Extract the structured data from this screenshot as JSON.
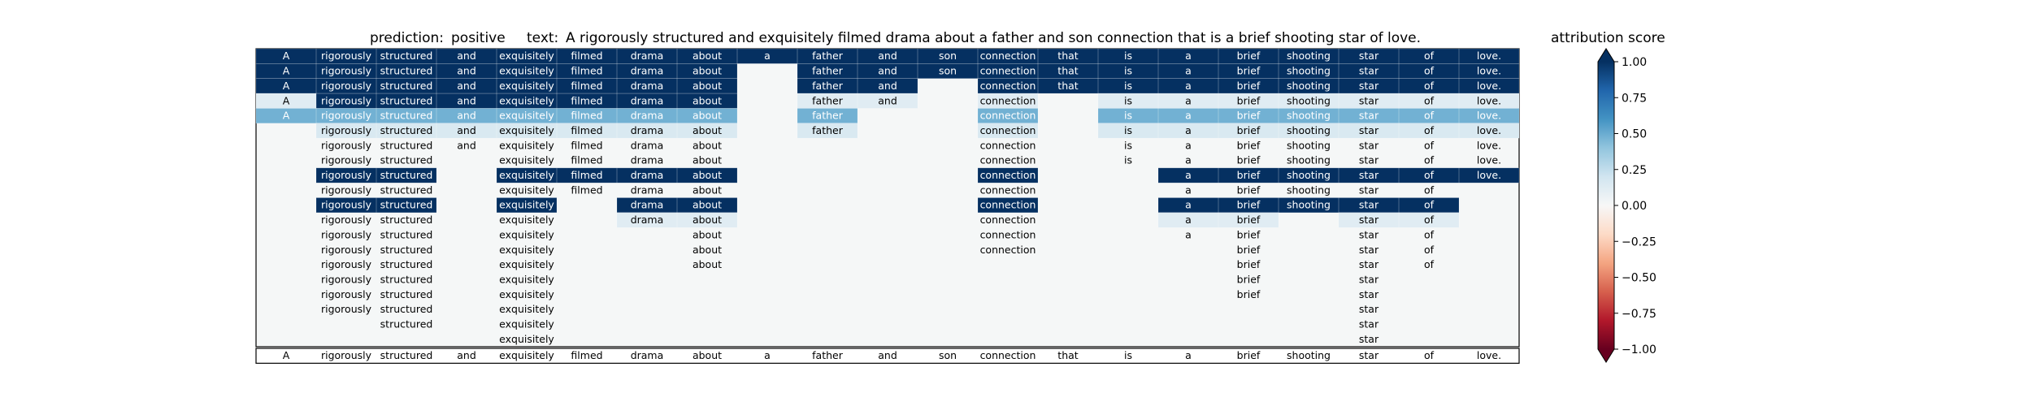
{
  "header": {
    "prediction_label": "prediction:",
    "prediction_value": "positive",
    "text_label": "text:",
    "text_value": "A rigorously structured and exquisitely filmed drama about a father and son connection that is a brief shooting star of love."
  },
  "chart_data": {
    "type": "heatmap",
    "tokens": [
      "A",
      "rigorously",
      "structured",
      "and",
      "exquisitely",
      "filmed",
      "drama",
      "about",
      "a",
      "father",
      "and",
      "son",
      "connection",
      "that",
      "is",
      "a",
      "brief",
      "shooting",
      "star",
      "of",
      "love."
    ],
    "num_rows": 20,
    "row_max": [
      21,
      21,
      21,
      20,
      20,
      20,
      19,
      18,
      20,
      15,
      18,
      14,
      14,
      13,
      12,
      11,
      10,
      9,
      9,
      9
    ],
    "cells": [
      [
        1,
        1,
        1,
        1,
        1,
        1,
        1,
        1,
        1,
        1,
        1,
        1,
        1,
        1,
        1,
        1,
        1,
        1,
        1,
        1,
        1
      ],
      [
        1,
        1,
        1,
        1,
        1,
        1,
        1,
        1,
        0,
        1,
        1,
        1,
        1,
        1,
        1,
        1,
        1,
        1,
        1,
        1,
        1
      ],
      [
        1,
        1,
        1,
        1,
        1,
        1,
        1,
        1,
        0,
        1,
        1,
        0,
        1,
        1,
        1,
        1,
        1,
        1,
        1,
        1,
        1
      ],
      [
        0.15,
        1,
        1,
        1,
        1,
        1,
        1,
        1,
        0,
        0.15,
        0.15,
        0,
        0.15,
        0,
        0.15,
        0.15,
        0.15,
        0.15,
        0.15,
        0.15,
        0.15
      ],
      [
        0.6,
        0.6,
        0.6,
        0.6,
        0.6,
        0.6,
        0.6,
        0.6,
        0,
        0.6,
        0,
        0,
        0.6,
        0,
        0.6,
        0.6,
        0.6,
        0.6,
        0.6,
        0.6,
        0.6
      ],
      [
        0,
        0.2,
        0.2,
        0.2,
        0.2,
        0.2,
        0.2,
        0.2,
        0,
        0.2,
        0,
        0,
        0.2,
        0,
        0.2,
        0.2,
        0.2,
        0.2,
        0.2,
        0.2,
        0.2
      ],
      [
        0,
        0,
        0,
        0,
        0,
        0,
        0,
        0,
        0,
        0,
        0,
        0,
        0,
        0,
        0,
        0,
        0,
        0,
        0,
        0,
        0
      ],
      [
        0,
        0,
        0,
        0,
        0,
        0,
        0,
        0,
        0,
        0,
        0,
        0,
        0,
        0,
        0,
        0,
        0,
        0,
        0,
        0,
        0
      ],
      [
        0,
        1,
        1,
        0,
        1,
        1,
        1,
        1,
        0,
        0,
        0,
        0,
        1,
        0,
        0,
        1,
        1,
        1,
        1,
        1,
        1
      ],
      [
        0,
        0,
        0,
        0,
        0,
        0,
        0,
        0,
        0,
        0,
        0,
        0,
        0,
        0,
        0,
        0,
        0,
        0,
        0,
        0,
        0
      ],
      [
        0,
        1,
        1,
        0,
        1,
        0,
        1,
        1,
        0,
        0,
        0,
        0,
        1,
        0,
        0,
        1,
        1,
        1,
        1,
        1,
        0
      ],
      [
        0,
        0,
        0,
        0,
        0,
        0,
        0.15,
        0.15,
        0,
        0,
        0,
        0,
        0,
        0,
        0,
        0.15,
        0.15,
        0,
        0.15,
        0.15,
        0
      ],
      [
        0,
        0,
        0,
        0,
        0,
        0,
        0,
        0,
        0,
        0,
        0,
        0,
        0,
        0,
        0,
        0,
        0,
        0,
        0,
        0,
        0
      ],
      [
        0,
        0,
        0,
        0,
        0,
        0,
        0,
        0,
        0,
        0,
        0,
        0,
        0,
        0,
        0,
        0,
        0,
        0,
        0,
        0,
        0
      ],
      [
        0,
        0,
        0,
        0,
        0,
        0,
        0,
        0,
        0,
        0,
        0,
        0,
        0,
        0,
        0,
        0,
        0,
        0,
        0,
        0,
        0
      ],
      [
        0,
        0,
        0,
        0,
        0,
        0,
        0,
        0,
        0,
        0,
        0,
        0,
        0,
        0,
        0,
        0,
        0,
        0,
        0,
        0,
        0
      ],
      [
        0,
        0,
        0,
        0,
        0,
        0,
        0,
        0,
        0,
        0,
        0,
        0,
        0,
        0,
        0,
        0,
        0,
        0,
        0,
        0,
        0
      ],
      [
        0,
        0,
        0,
        0,
        0,
        0,
        0,
        0,
        0,
        0,
        0,
        0,
        0,
        0,
        0,
        0,
        0,
        0,
        0,
        0,
        0
      ],
      [
        0,
        0,
        0,
        0,
        0,
        0,
        0,
        0,
        0,
        0,
        0,
        0,
        0,
        0,
        0,
        0,
        0,
        0,
        0,
        0,
        0
      ],
      [
        0,
        0,
        0,
        0,
        0,
        0,
        0,
        0,
        0,
        0,
        0,
        0,
        0,
        0,
        0,
        0,
        0,
        0,
        0,
        0,
        0
      ]
    ],
    "colorbar": {
      "title": "attribution score",
      "range": [
        -1,
        1
      ],
      "ticks": [
        1.0,
        0.75,
        0.5,
        0.25,
        0.0,
        -0.25,
        -0.5,
        -0.75,
        -1.0
      ],
      "tick_labels": [
        "1.00",
        "0.75",
        "0.50",
        "0.25",
        "0.00",
        "−0.25",
        "−0.50",
        "−0.75",
        "−1.00"
      ],
      "colors": {
        "max": "#053061",
        "high": "#2166ac",
        "mid_high": "#4393c3",
        "low_pos": "#92c5de",
        "faint_pos": "#d1e5f0",
        "zero": "#f7f7f7",
        "faint_neg": "#fddbc7",
        "low_neg": "#f4a582",
        "mid_neg": "#d6604d",
        "high_neg": "#b2182b",
        "min": "#67001f"
      }
    }
  }
}
